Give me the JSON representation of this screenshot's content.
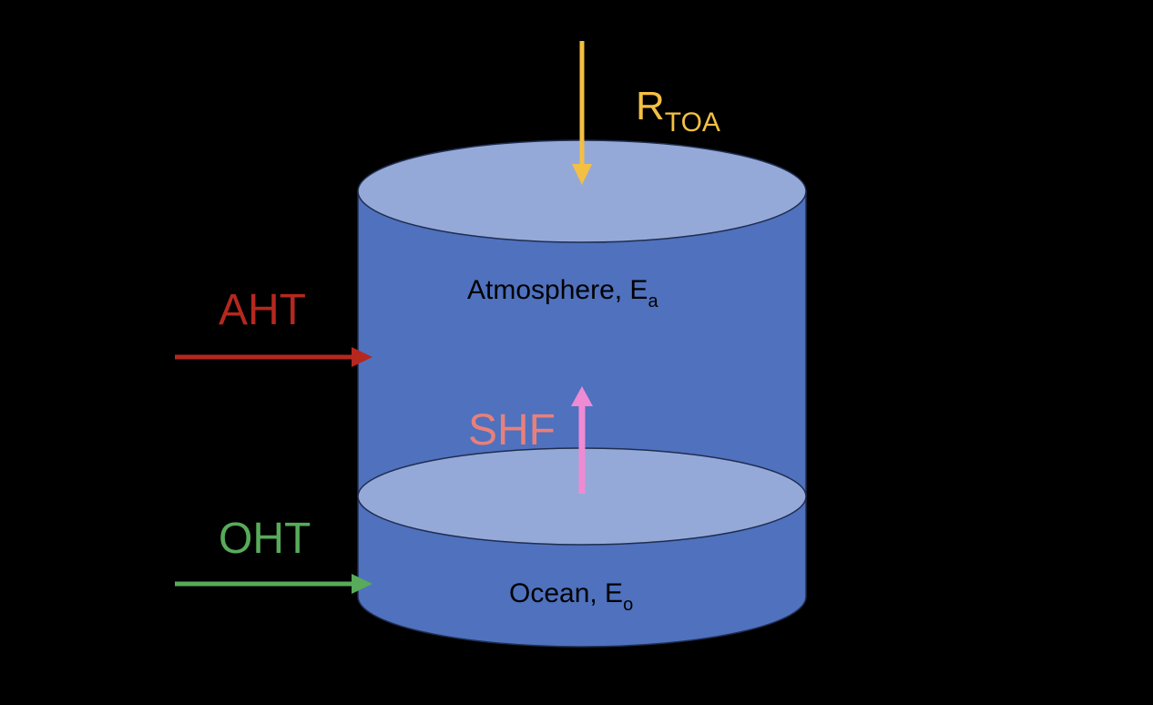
{
  "labels": {
    "rtoa_main": "R",
    "rtoa_sub": "TOA",
    "atmosphere_main": "Atmosphere, E",
    "atmosphere_sub": "a",
    "ocean_main": "Ocean, E",
    "ocean_sub": "o",
    "aht": "AHT",
    "oht": "OHT",
    "shf": "SHF"
  },
  "colors": {
    "background": "#000000",
    "cylinder_body": "#4f71be",
    "cylinder_top": "#95a9d9",
    "outline": "#1f2d4f",
    "rtoa": "#f4c043",
    "aht": "#b5281f",
    "oht": "#57ab5a",
    "shf_text": "#e8807a",
    "shf_arrow": "#ef8bd3",
    "body_text": "#000000"
  }
}
